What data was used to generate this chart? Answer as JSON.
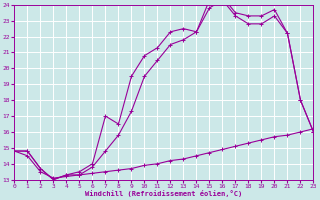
{
  "xlabel": "Windchill (Refroidissement éolien,°C)",
  "bg_color": "#cce8e8",
  "grid_color": "#ffffff",
  "line_color": "#990099",
  "xmin": 0,
  "xmax": 23,
  "ymin": 13,
  "ymax": 24,
  "line1_x": [
    0,
    1,
    2,
    3,
    4,
    5,
    6,
    7,
    8,
    9,
    10,
    11,
    12,
    13,
    14,
    15,
    16,
    17,
    18,
    19,
    20,
    21,
    22,
    23
  ],
  "line1_y": [
    14.8,
    14.8,
    13.7,
    13.0,
    13.3,
    13.5,
    14.0,
    17.0,
    16.5,
    19.5,
    20.8,
    21.3,
    22.3,
    22.5,
    22.3,
    24.3,
    24.5,
    23.5,
    23.3,
    23.3,
    23.7,
    22.2,
    18.0,
    16.0
  ],
  "line2_x": [
    0,
    1,
    2,
    3,
    4,
    5,
    6,
    7,
    8,
    9,
    10,
    11,
    12,
    13,
    14,
    15,
    16,
    17,
    18,
    19,
    20,
    21,
    22,
    23
  ],
  "line2_y": [
    14.8,
    14.8,
    13.7,
    13.0,
    13.3,
    13.3,
    13.8,
    14.8,
    15.8,
    17.3,
    19.5,
    20.5,
    21.5,
    21.8,
    22.3,
    23.8,
    24.3,
    23.3,
    22.8,
    22.8,
    23.3,
    22.2,
    18.0,
    16.0
  ],
  "line3_x": [
    0,
    1,
    2,
    3,
    4,
    5,
    6,
    7,
    8,
    9,
    10,
    11,
    12,
    13,
    14,
    15,
    16,
    17,
    18,
    19,
    20,
    21,
    22,
    23
  ],
  "line3_y": [
    14.8,
    14.5,
    13.5,
    13.1,
    13.2,
    13.3,
    13.4,
    13.5,
    13.6,
    13.7,
    13.9,
    14.0,
    14.2,
    14.3,
    14.5,
    14.7,
    14.9,
    15.1,
    15.3,
    15.5,
    15.7,
    15.8,
    16.0,
    16.2
  ]
}
